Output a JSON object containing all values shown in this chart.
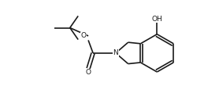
{
  "bg_color": "#ffffff",
  "line_color": "#1a1a1a",
  "line_width": 1.2,
  "text_color": "#1a1a1a",
  "fig_width": 2.78,
  "fig_height": 1.33,
  "dpi": 100,
  "xlim": [
    0,
    10
  ],
  "ylim": [
    0,
    4.8
  ],
  "font_size": 6.5
}
